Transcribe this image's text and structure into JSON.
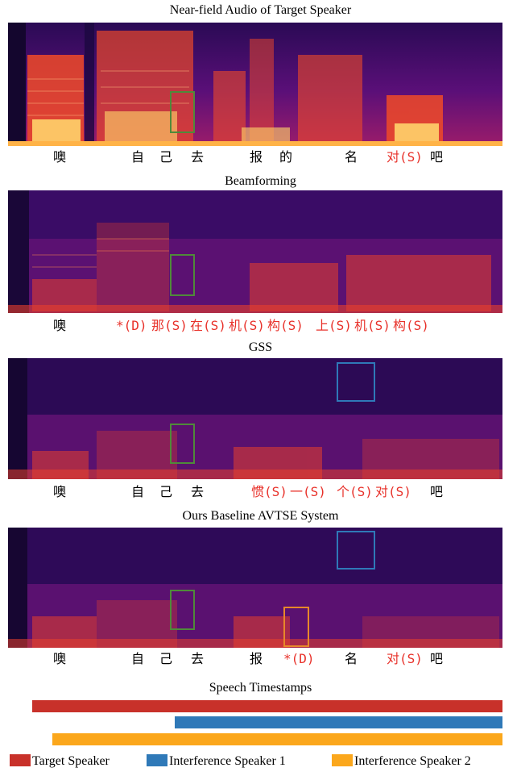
{
  "panels": [
    {
      "title": "Near-field Audio of Target Speaker",
      "tokens": [
        {
          "text": "噢",
          "error": false
        },
        {
          "text": "自",
          "error": false
        },
        {
          "text": "己",
          "error": false
        },
        {
          "text": "去",
          "error": false
        },
        {
          "text": "报",
          "error": false
        },
        {
          "text": "的",
          "error": false
        },
        {
          "text": "名",
          "error": false
        },
        {
          "text": "对(S)",
          "error": true
        },
        {
          "text": "吧",
          "error": false
        }
      ]
    },
    {
      "title": "Beamforming",
      "tokens": [
        {
          "text": "噢",
          "error": false
        },
        {
          "text": "*(D)",
          "error": true
        },
        {
          "text": "那(S)",
          "error": true
        },
        {
          "text": "在(S)",
          "error": true
        },
        {
          "text": "机(S)",
          "error": true
        },
        {
          "text": "构(S)",
          "error": true
        },
        {
          "text": "上(S)",
          "error": true
        },
        {
          "text": "机(S)",
          "error": true
        },
        {
          "text": "构(S)",
          "error": true
        }
      ]
    },
    {
      "title": "GSS",
      "tokens": [
        {
          "text": "噢",
          "error": false
        },
        {
          "text": "自",
          "error": false
        },
        {
          "text": "己",
          "error": false
        },
        {
          "text": "去",
          "error": false
        },
        {
          "text": "惯(S)",
          "error": true
        },
        {
          "text": "一(S)",
          "error": true
        },
        {
          "text": "个(S)",
          "error": true
        },
        {
          "text": "对(S)",
          "error": true
        },
        {
          "text": "吧",
          "error": false
        }
      ]
    },
    {
      "title": "Ours Baseline AVTSE System",
      "tokens": [
        {
          "text": "噢",
          "error": false
        },
        {
          "text": "自",
          "error": false
        },
        {
          "text": "己",
          "error": false
        },
        {
          "text": "去",
          "error": false
        },
        {
          "text": "报",
          "error": false
        },
        {
          "text": "*(D)",
          "error": true
        },
        {
          "text": "名",
          "error": false
        },
        {
          "text": "对(S)",
          "error": true
        },
        {
          "text": "吧",
          "error": false
        }
      ]
    }
  ],
  "timestamps": {
    "title": "Speech Timestamps",
    "legend": [
      {
        "label": "Target Speaker",
        "color": "#c8312a"
      },
      {
        "label": "Interference Speaker 1",
        "color": "#2f79b8"
      },
      {
        "label": "Interference Speaker 2",
        "color": "#fba71c"
      }
    ]
  },
  "box_colors": {
    "target": "#4f8a3a",
    "interference1": "#2f79b8",
    "deletion": "#e8882a"
  },
  "error_color": "#e8312a"
}
